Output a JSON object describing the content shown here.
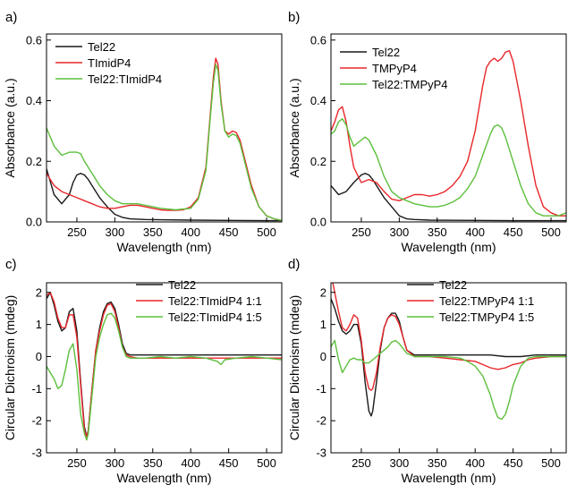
{
  "colors": {
    "black": "#1a1a1a",
    "red": "#e8272a",
    "green": "#5cbf3c"
  },
  "chart_data": [
    {
      "panel": "a)",
      "type": "line",
      "xlabel": "Wavelength (nm)",
      "ylabel": "Absorbance (a.u.)",
      "xlim": [
        210,
        520
      ],
      "ylim": [
        0,
        0.62
      ],
      "xticks": [
        250,
        300,
        350,
        400,
        450,
        500
      ],
      "yticks": [
        0.0,
        0.2,
        0.4,
        0.6
      ],
      "ytick_labels": [
        "0.0",
        "0.2",
        "0.4",
        "0.6"
      ],
      "legend_position": "top-left",
      "series": [
        {
          "name": "Tel22",
          "color": "#1a1a1a",
          "x": [
            210,
            220,
            230,
            240,
            245,
            250,
            255,
            260,
            265,
            270,
            280,
            290,
            300,
            310,
            320,
            340,
            360,
            400,
            450,
            500,
            520
          ],
          "y": [
            0.175,
            0.09,
            0.06,
            0.09,
            0.13,
            0.155,
            0.16,
            0.155,
            0.14,
            0.12,
            0.08,
            0.05,
            0.025,
            0.015,
            0.01,
            0.008,
            0.007,
            0.006,
            0.005,
            0.004,
            0.004
          ]
        },
        {
          "name": "TImidP4",
          "color": "#e8272a",
          "x": [
            210,
            220,
            230,
            240,
            250,
            260,
            270,
            280,
            290,
            300,
            310,
            320,
            330,
            340,
            350,
            360,
            370,
            380,
            390,
            400,
            410,
            420,
            425,
            430,
            433,
            436,
            440,
            445,
            450,
            455,
            460,
            465,
            470,
            480,
            490,
            500,
            510,
            520
          ],
          "y": [
            0.16,
            0.12,
            0.1,
            0.09,
            0.08,
            0.07,
            0.06,
            0.05,
            0.045,
            0.045,
            0.05,
            0.055,
            0.055,
            0.05,
            0.045,
            0.04,
            0.038,
            0.038,
            0.04,
            0.05,
            0.08,
            0.18,
            0.33,
            0.48,
            0.54,
            0.52,
            0.4,
            0.3,
            0.29,
            0.3,
            0.295,
            0.27,
            0.22,
            0.12,
            0.05,
            0.02,
            0.01,
            0.005
          ]
        },
        {
          "name": "Tel22:TImidP4",
          "color": "#5cbf3c",
          "x": [
            210,
            220,
            230,
            240,
            250,
            255,
            260,
            270,
            280,
            290,
            300,
            310,
            320,
            330,
            340,
            350,
            360,
            380,
            400,
            410,
            420,
            425,
            430,
            433,
            436,
            440,
            445,
            450,
            455,
            460,
            465,
            470,
            480,
            490,
            500,
            510,
            520
          ],
          "y": [
            0.31,
            0.25,
            0.22,
            0.23,
            0.23,
            0.225,
            0.2,
            0.16,
            0.12,
            0.09,
            0.07,
            0.06,
            0.06,
            0.06,
            0.055,
            0.05,
            0.045,
            0.04,
            0.045,
            0.075,
            0.17,
            0.32,
            0.46,
            0.52,
            0.5,
            0.39,
            0.3,
            0.28,
            0.29,
            0.285,
            0.26,
            0.21,
            0.11,
            0.05,
            0.02,
            0.01,
            0.005
          ]
        }
      ]
    },
    {
      "panel": "b)",
      "type": "line",
      "xlabel": "Wavelength (nm)",
      "ylabel": "Absorbance (a.u.)",
      "xlim": [
        210,
        520
      ],
      "ylim": [
        0,
        0.62
      ],
      "xticks": [
        250,
        300,
        350,
        400,
        450,
        500
      ],
      "yticks": [
        0.0,
        0.2,
        0.4,
        0.6
      ],
      "ytick_labels": [
        "0.0",
        "0.2",
        "0.4",
        "0.6"
      ],
      "legend_position": "top-left",
      "series": [
        {
          "name": "Tel22",
          "color": "#1a1a1a",
          "x": [
            210,
            220,
            230,
            240,
            250,
            255,
            260,
            265,
            270,
            280,
            290,
            300,
            310,
            320,
            340,
            400,
            450,
            520
          ],
          "y": [
            0.12,
            0.09,
            0.1,
            0.13,
            0.155,
            0.16,
            0.155,
            0.14,
            0.12,
            0.08,
            0.05,
            0.02,
            0.01,
            0.008,
            0.006,
            0.005,
            0.004,
            0.004
          ]
        },
        {
          "name": "TMPyP4",
          "color": "#e8272a",
          "x": [
            210,
            215,
            220,
            225,
            230,
            235,
            240,
            250,
            260,
            270,
            280,
            290,
            300,
            310,
            320,
            330,
            340,
            350,
            360,
            370,
            380,
            390,
            400,
            410,
            415,
            420,
            425,
            430,
            435,
            440,
            445,
            450,
            460,
            470,
            480,
            490,
            500,
            510,
            520
          ],
          "y": [
            0.3,
            0.33,
            0.37,
            0.38,
            0.33,
            0.25,
            0.18,
            0.13,
            0.14,
            0.13,
            0.1,
            0.075,
            0.07,
            0.08,
            0.09,
            0.09,
            0.085,
            0.09,
            0.1,
            0.12,
            0.15,
            0.2,
            0.3,
            0.45,
            0.51,
            0.53,
            0.54,
            0.53,
            0.54,
            0.56,
            0.565,
            0.53,
            0.4,
            0.25,
            0.12,
            0.05,
            0.03,
            0.02,
            0.02
          ]
        },
        {
          "name": "Tel22:TMPyP4",
          "color": "#5cbf3c",
          "x": [
            210,
            215,
            220,
            225,
            230,
            235,
            240,
            250,
            255,
            260,
            270,
            280,
            290,
            300,
            310,
            320,
            330,
            340,
            350,
            360,
            370,
            380,
            390,
            400,
            410,
            420,
            425,
            430,
            435,
            440,
            450,
            460,
            470,
            480,
            490,
            500,
            510,
            520
          ],
          "y": [
            0.29,
            0.3,
            0.33,
            0.34,
            0.32,
            0.28,
            0.25,
            0.27,
            0.28,
            0.27,
            0.22,
            0.15,
            0.1,
            0.08,
            0.07,
            0.06,
            0.055,
            0.05,
            0.05,
            0.055,
            0.065,
            0.08,
            0.11,
            0.15,
            0.22,
            0.29,
            0.315,
            0.32,
            0.31,
            0.28,
            0.2,
            0.12,
            0.06,
            0.03,
            0.02,
            0.02,
            0.02,
            0.03
          ]
        }
      ]
    },
    {
      "panel": "c)",
      "type": "line",
      "xlabel": "Wavelength (nm)",
      "ylabel": "Circular Dichroism (mdeg)",
      "xlim": [
        210,
        520
      ],
      "ylim": [
        -3,
        2.3
      ],
      "xticks": [
        250,
        300,
        350,
        400,
        450,
        500
      ],
      "yticks": [
        -3,
        -2,
        -1,
        0,
        1,
        2
      ],
      "ytick_labels": [
        "-3",
        "-2",
        "-1",
        "0",
        "1",
        "2"
      ],
      "legend_position": "top-right",
      "series": [
        {
          "name": "Tel22",
          "color": "#1a1a1a",
          "x": [
            210,
            215,
            220,
            225,
            230,
            235,
            240,
            245,
            250,
            255,
            260,
            263,
            265,
            270,
            275,
            280,
            285,
            290,
            295,
            300,
            305,
            310,
            315,
            320,
            330,
            340,
            360,
            380,
            400,
            420,
            440,
            460,
            480,
            500,
            520
          ],
          "y": [
            1.8,
            2.0,
            1.6,
            1.1,
            0.8,
            0.9,
            1.4,
            1.5,
            0.8,
            -0.8,
            -2.2,
            -2.5,
            -2.3,
            -1.0,
            0.2,
            0.9,
            1.4,
            1.65,
            1.7,
            1.5,
            1.0,
            0.4,
            0.1,
            0.05,
            0.05,
            0.05,
            0.05,
            0.05,
            0.05,
            0.05,
            0.05,
            0.05,
            0.05,
            0.05,
            0.05
          ]
        },
        {
          "name": "Tel22:TImidP4 1:1",
          "color": "#e8272a",
          "x": [
            210,
            215,
            220,
            225,
            230,
            235,
            240,
            245,
            250,
            255,
            260,
            263,
            265,
            270,
            275,
            280,
            285,
            290,
            295,
            300,
            305,
            310,
            315,
            320,
            330,
            340,
            360,
            380,
            400,
            420,
            440,
            460,
            480,
            500,
            520
          ],
          "y": [
            1.9,
            2.0,
            1.7,
            1.2,
            0.9,
            0.9,
            1.3,
            1.3,
            0.6,
            -0.9,
            -2.3,
            -2.5,
            -2.3,
            -1.0,
            0.2,
            0.8,
            1.3,
            1.6,
            1.65,
            1.4,
            0.9,
            0.3,
            0.05,
            0.0,
            -0.05,
            -0.05,
            -0.05,
            -0.05,
            -0.05,
            -0.05,
            -0.05,
            -0.05,
            -0.05,
            -0.05,
            -0.05
          ]
        },
        {
          "name": "Tel22:TImidP4 1:5",
          "color": "#5cbf3c",
          "x": [
            210,
            215,
            220,
            225,
            230,
            235,
            240,
            245,
            250,
            255,
            260,
            263,
            265,
            270,
            275,
            280,
            285,
            290,
            295,
            300,
            305,
            310,
            315,
            320,
            330,
            340,
            360,
            380,
            400,
            420,
            435,
            440,
            445,
            460,
            480,
            500,
            520
          ],
          "y": [
            -0.3,
            -0.5,
            -0.7,
            -1.0,
            -0.9,
            -0.4,
            0.2,
            0.4,
            -0.4,
            -1.8,
            -2.4,
            -2.6,
            -2.4,
            -1.2,
            0.0,
            0.6,
            1.0,
            1.3,
            1.35,
            1.2,
            0.8,
            0.3,
            0.0,
            -0.05,
            -0.05,
            -0.05,
            0.0,
            -0.05,
            0.0,
            -0.05,
            -0.15,
            -0.25,
            -0.1,
            -0.05,
            0.0,
            -0.05,
            -0.1
          ]
        }
      ]
    },
    {
      "panel": "d)",
      "type": "line",
      "xlabel": "Wavelength (nm)",
      "ylabel": "Circular Dichroism (mdeg)",
      "xlim": [
        210,
        520
      ],
      "ylim": [
        -3,
        2.3
      ],
      "xticks": [
        250,
        300,
        350,
        400,
        450,
        500
      ],
      "yticks": [
        -3,
        -2,
        -1,
        0,
        1,
        2
      ],
      "ytick_labels": [
        "-3",
        "-2",
        "-1",
        "0",
        "1",
        "2"
      ],
      "legend_position": "top-right",
      "series": [
        {
          "name": "Tel22",
          "color": "#1a1a1a",
          "x": [
            210,
            215,
            220,
            225,
            230,
            235,
            240,
            245,
            250,
            255,
            260,
            263,
            265,
            270,
            275,
            280,
            285,
            290,
            295,
            300,
            305,
            310,
            320,
            340,
            360,
            380,
            400,
            420,
            440,
            460,
            480,
            500,
            520
          ],
          "y": [
            1.8,
            1.5,
            1.1,
            0.8,
            0.7,
            0.8,
            1.0,
            1.0,
            0.4,
            -0.8,
            -1.7,
            -1.85,
            -1.7,
            -0.8,
            0.2,
            0.9,
            1.2,
            1.35,
            1.35,
            1.1,
            0.6,
            0.2,
            0.05,
            0.05,
            0.05,
            0.05,
            0.05,
            0.05,
            0.0,
            0.0,
            0.05,
            0.05,
            0.05
          ]
        },
        {
          "name": "Tel22:TMPyP4 1:1",
          "color": "#e8272a",
          "x": [
            210,
            215,
            220,
            225,
            230,
            235,
            240,
            245,
            250,
            255,
            260,
            263,
            265,
            270,
            275,
            280,
            285,
            290,
            295,
            300,
            305,
            310,
            320,
            340,
            360,
            380,
            400,
            410,
            420,
            430,
            440,
            450,
            460,
            470,
            480,
            500,
            520
          ],
          "y": [
            2.6,
            2.0,
            1.4,
            0.9,
            0.8,
            1.0,
            1.3,
            1.2,
            0.5,
            -0.5,
            -1.0,
            -1.05,
            -1.0,
            -0.5,
            0.3,
            0.9,
            1.2,
            1.3,
            1.25,
            1.0,
            0.6,
            0.2,
            0.0,
            0.0,
            -0.05,
            -0.1,
            -0.15,
            -0.25,
            -0.35,
            -0.4,
            -0.35,
            -0.25,
            -0.2,
            -0.1,
            -0.05,
            0.0,
            0.0
          ]
        },
        {
          "name": "Tel22:TMPyP4 1:5",
          "color": "#5cbf3c",
          "x": [
            210,
            215,
            220,
            225,
            230,
            235,
            240,
            245,
            250,
            255,
            260,
            265,
            270,
            275,
            280,
            285,
            290,
            295,
            300,
            310,
            320,
            340,
            360,
            380,
            390,
            400,
            410,
            420,
            425,
            430,
            435,
            440,
            445,
            450,
            460,
            470,
            480,
            500,
            520
          ],
          "y": [
            0.3,
            0.5,
            -0.1,
            -0.5,
            -0.3,
            -0.1,
            -0.05,
            -0.1,
            -0.1,
            -0.2,
            -0.2,
            -0.1,
            0.0,
            0.1,
            0.2,
            0.3,
            0.45,
            0.5,
            0.4,
            0.1,
            0.0,
            0.0,
            0.0,
            -0.05,
            -0.15,
            -0.3,
            -0.6,
            -1.2,
            -1.6,
            -1.9,
            -1.95,
            -1.8,
            -1.4,
            -0.9,
            -0.3,
            -0.05,
            0.0,
            0.0,
            0.0
          ]
        }
      ]
    }
  ]
}
